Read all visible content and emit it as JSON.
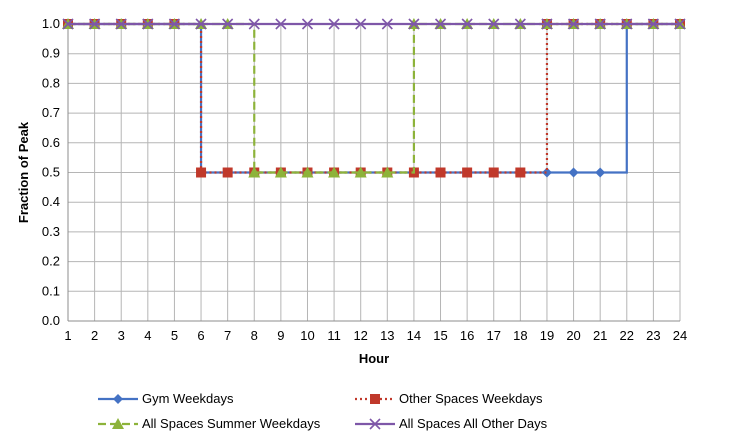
{
  "chart_data": {
    "type": "line",
    "xlabel": "Hour",
    "ylabel": "Fraction of Peak",
    "x": [
      1,
      2,
      3,
      4,
      5,
      6,
      7,
      8,
      9,
      10,
      11,
      12,
      13,
      14,
      15,
      16,
      17,
      18,
      19,
      20,
      21,
      22,
      23,
      24
    ],
    "xlim": [
      1,
      24
    ],
    "ylim": [
      0,
      1
    ],
    "yticks": [
      "0.0",
      "0.1",
      "0.2",
      "0.3",
      "0.4",
      "0.5",
      "0.6",
      "0.7",
      "0.8",
      "0.9",
      "1.0"
    ],
    "xticks": [
      "1",
      "2",
      "3",
      "4",
      "5",
      "6",
      "7",
      "8",
      "9",
      "10",
      "11",
      "12",
      "13",
      "14",
      "15",
      "16",
      "17",
      "18",
      "19",
      "20",
      "21",
      "22",
      "23",
      "24"
    ],
    "grid": true,
    "step": true,
    "legend_position": "bottom",
    "series": [
      {
        "name": "Gym Weekdays",
        "color": "#4472C4",
        "marker": "diamond",
        "dash": "solid",
        "values": [
          1,
          1,
          1,
          1,
          1,
          0.5,
          0.5,
          0.5,
          0.5,
          0.5,
          0.5,
          0.5,
          0.5,
          0.5,
          0.5,
          0.5,
          0.5,
          0.5,
          0.5,
          0.5,
          0.5,
          1,
          1,
          1
        ]
      },
      {
        "name": "Other Spaces Weekdays",
        "color": "#C0392B",
        "marker": "square",
        "dash": "dotted",
        "values": [
          1,
          1,
          1,
          1,
          1,
          0.5,
          0.5,
          0.5,
          0.5,
          0.5,
          0.5,
          0.5,
          0.5,
          0.5,
          0.5,
          0.5,
          0.5,
          0.5,
          1,
          1,
          1,
          1,
          1,
          1
        ]
      },
      {
        "name": "All Spaces Summer Weekdays",
        "color": "#8DB33A",
        "marker": "triangle",
        "dash": "dashed",
        "values": [
          1,
          1,
          1,
          1,
          1,
          1,
          1,
          0.5,
          0.5,
          0.5,
          0.5,
          0.5,
          0.5,
          1,
          1,
          1,
          1,
          1,
          1,
          1,
          1,
          1,
          1,
          1
        ]
      },
      {
        "name": "All Spaces All Other Days",
        "color": "#7E57A8",
        "marker": "x",
        "dash": "solid",
        "values": [
          1,
          1,
          1,
          1,
          1,
          1,
          1,
          1,
          1,
          1,
          1,
          1,
          1,
          1,
          1,
          1,
          1,
          1,
          1,
          1,
          1,
          1,
          1,
          1
        ]
      }
    ]
  }
}
